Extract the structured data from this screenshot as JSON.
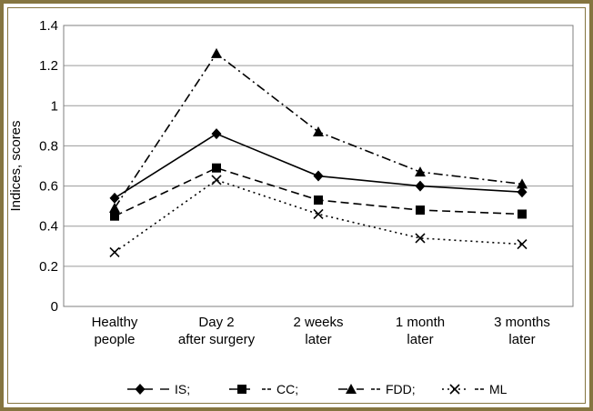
{
  "chart_data": {
    "type": "line",
    "ylabel": "Indices, scores",
    "xlabel": "",
    "ylim": [
      0,
      1.4
    ],
    "y_ticks": [
      "0",
      "0.2",
      "0.4",
      "0.6",
      "0.8",
      "1",
      "1.2",
      "1.4"
    ],
    "grid": true,
    "legend_position": "bottom",
    "categories": [
      [
        "Healthy",
        "people"
      ],
      [
        "Day 2",
        "after surgery"
      ],
      [
        "2 weeks",
        "later"
      ],
      [
        "1 month",
        "later"
      ],
      [
        "3 months",
        "later"
      ]
    ],
    "series": [
      {
        "name": "IS;",
        "legend": "— IS;",
        "marker": "diamond",
        "dash": "solid",
        "values": [
          0.54,
          0.86,
          0.65,
          0.6,
          0.57
        ]
      },
      {
        "name": "CC;",
        "legend": "— CC;",
        "marker": "square",
        "dash": "dashed",
        "values": [
          0.45,
          0.69,
          0.53,
          0.48,
          0.46
        ]
      },
      {
        "name": "FDD;",
        "legend": "· – · FDD;",
        "marker": "triangle",
        "dash": "dashdot",
        "values": [
          0.49,
          1.26,
          0.87,
          0.67,
          0.61
        ]
      },
      {
        "name": "ML",
        "legend": "— ML",
        "marker": "cross",
        "dash": "dotted",
        "values": [
          0.27,
          0.63,
          0.46,
          0.34,
          0.31
        ]
      }
    ],
    "colors": {
      "line": "#000000",
      "grid": "#9a9a9a",
      "frame": "#857540"
    }
  }
}
